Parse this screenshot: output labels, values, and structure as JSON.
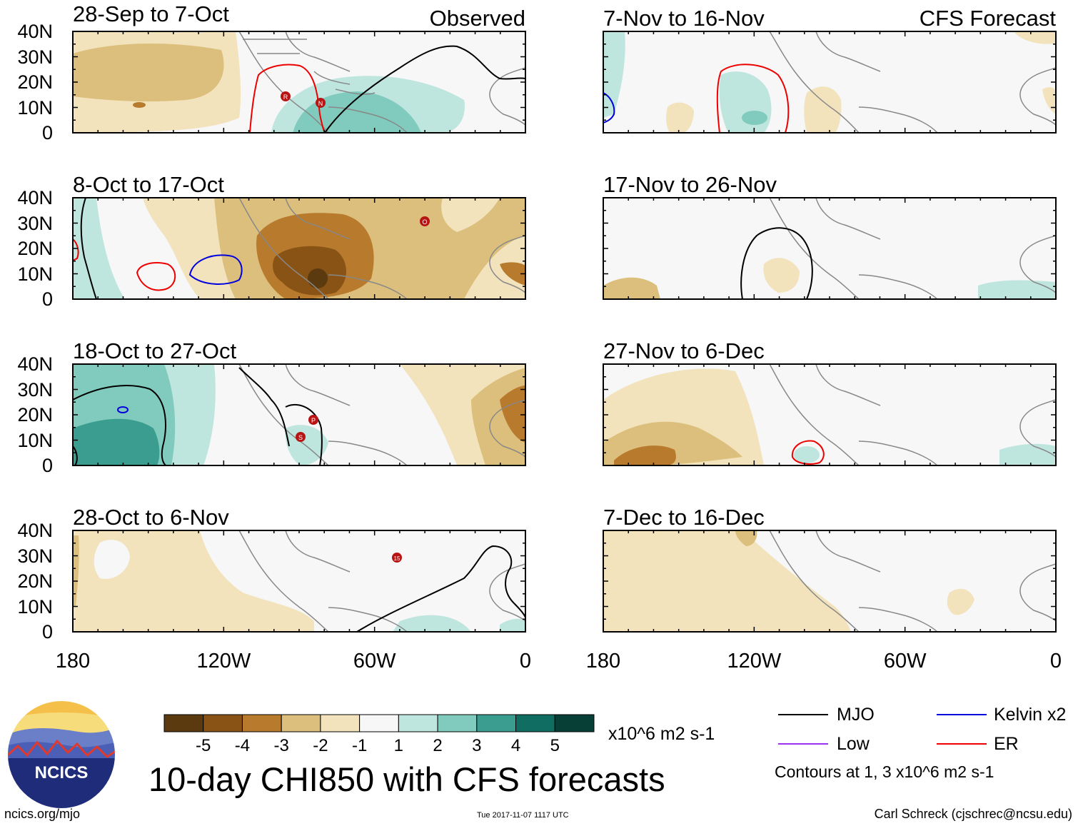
{
  "title": "10-day CHI850 with CFS forecasts",
  "headers": {
    "observed": "Observed",
    "forecast": "CFS Forecast"
  },
  "lat_labels": [
    "40N",
    "30N",
    "20N",
    "10N",
    "0"
  ],
  "lon_labels": [
    "180",
    "120W",
    "60W",
    "0"
  ],
  "panels_left": [
    {
      "title": "28-Sep to 7-Oct",
      "storms": [
        "R",
        "N"
      ]
    },
    {
      "title": "8-Oct to 17-Oct",
      "storms": [
        "O"
      ]
    },
    {
      "title": "18-Oct to 27-Oct",
      "storms": [
        "P",
        "S"
      ]
    },
    {
      "title": "28-Oct to 6-Nov",
      "storms": [
        "15"
      ]
    }
  ],
  "panels_right": [
    {
      "title": "7-Nov to 16-Nov"
    },
    {
      "title": "17-Nov to 26-Nov"
    },
    {
      "title": "27-Nov to 6-Dec"
    },
    {
      "title": "7-Dec to 16-Dec"
    }
  ],
  "colorbar": {
    "labels": [
      "-5",
      "-4",
      "-3",
      "-2",
      "-1",
      "1",
      "2",
      "3",
      "4",
      "5"
    ],
    "colors": [
      "#5a3a0e",
      "#8a5316",
      "#b87a2c",
      "#dcbf7c",
      "#f2e3bd",
      "#f7f7f7",
      "#bfe6de",
      "#80cbbd",
      "#3a9d8f",
      "#0f6e61",
      "#073f37"
    ],
    "units": "x10^6 m2 s-1"
  },
  "legend": {
    "items": [
      {
        "label": "MJO",
        "color": "#000000"
      },
      {
        "label": "Kelvin x2",
        "color": "#0000dd"
      },
      {
        "label": "Low",
        "color": "#9933ee"
      },
      {
        "label": "ER",
        "color": "#ee0000"
      }
    ],
    "note": "Contours at 1, 3 x10^6 m2 s-1"
  },
  "logo": {
    "text": "NCICS"
  },
  "footer": {
    "url": "ncics.org/mjo",
    "timestamp": "Tue 2017-11-07 1117 UTC",
    "credit": "Carl Schreck (cjschrec@ncsu.edu)"
  }
}
